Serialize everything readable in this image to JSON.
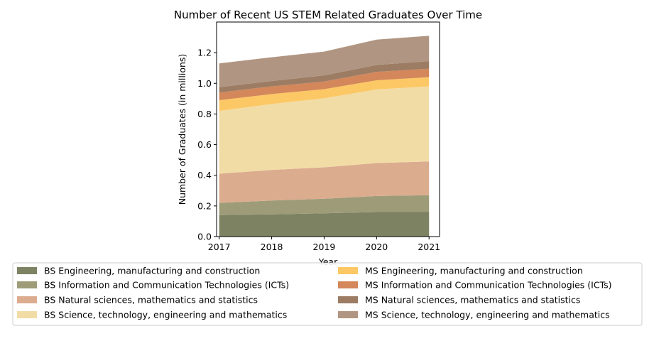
{
  "chart_data": {
    "type": "area",
    "stacked": true,
    "title": "Number of Recent US STEM Related Graduates Over Time",
    "xlabel": "Year",
    "ylabel": "Number of Graduates (in millions)",
    "x": [
      2017,
      2018,
      2019,
      2020,
      2021
    ],
    "xlim": [
      2016.95,
      2021.2
    ],
    "ylim": [
      0,
      1.4
    ],
    "yticks": [
      0.0,
      0.2,
      0.4,
      0.6,
      0.8,
      1.0,
      1.2
    ],
    "ytick_labels": [
      "0.0",
      "0.2",
      "0.4",
      "0.6",
      "0.8",
      "1.0",
      "1.2"
    ],
    "xtick_labels": [
      "2017",
      "2018",
      "2019",
      "2020",
      "2021"
    ],
    "grid": false,
    "legend_position": "bottom",
    "legend_columns": 2,
    "series": [
      {
        "name": "BS Engineering, manufacturing and construction",
        "color": "#7d8262",
        "values": [
          0.14,
          0.145,
          0.152,
          0.16,
          0.16
        ]
      },
      {
        "name": "BS Information and Communication Technologies (ICTs)",
        "color": "#9e9c78",
        "values": [
          0.08,
          0.09,
          0.095,
          0.105,
          0.11
        ]
      },
      {
        "name": "BS Natural sciences, mathematics and statistics",
        "color": "#dcac8f",
        "values": [
          0.19,
          0.2,
          0.205,
          0.215,
          0.22
        ]
      },
      {
        "name": "BS Science, technology, engineering and mathematics",
        "color": "#f2dca6",
        "values": [
          0.41,
          0.43,
          0.45,
          0.48,
          0.49
        ]
      },
      {
        "name": "MS Engineering, manufacturing and construction",
        "color": "#fcc865",
        "values": [
          0.07,
          0.065,
          0.06,
          0.06,
          0.06
        ]
      },
      {
        "name": "MS Information and Communication Technologies (ICTs)",
        "color": "#d3875a",
        "values": [
          0.05,
          0.05,
          0.05,
          0.055,
          0.055
        ]
      },
      {
        "name": "MS Natural sciences, mathematics and statistics",
        "color": "#9d7c64",
        "values": [
          0.035,
          0.035,
          0.04,
          0.045,
          0.05
        ]
      },
      {
        "name": "MS Science, technology, engineering and mathematics",
        "color": "#b09682",
        "values": [
          0.155,
          0.155,
          0.155,
          0.165,
          0.165
        ]
      }
    ]
  }
}
